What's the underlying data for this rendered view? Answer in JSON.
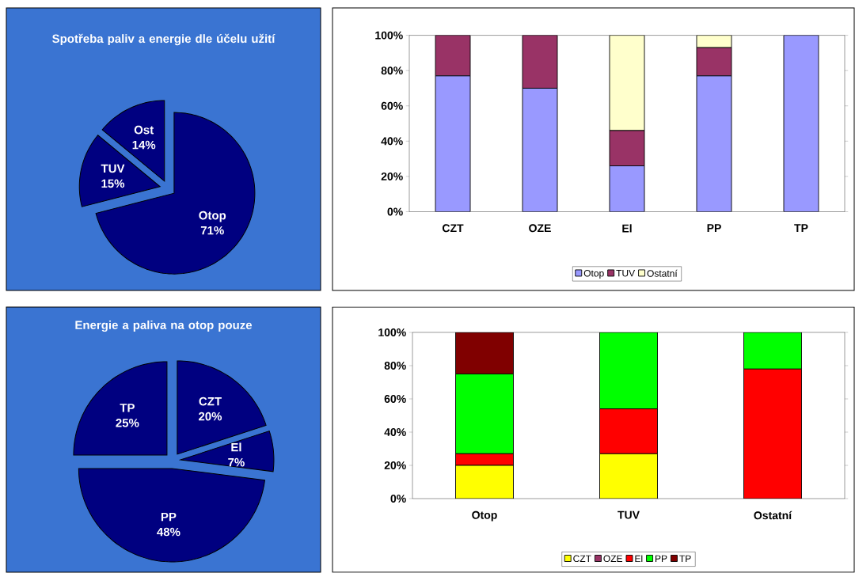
{
  "chart_data": [
    {
      "type": "pie",
      "title": "Spotřeba paliv a energie dle účelu užití",
      "categories": [
        "Otop",
        "TUV",
        "Ost"
      ],
      "values": [
        71,
        15,
        14
      ],
      "value_labels": [
        "71%",
        "15%",
        "14%"
      ],
      "colors": [
        "#000080",
        "#000080",
        "#000080"
      ]
    },
    {
      "type": "bar",
      "stacked": true,
      "categories": [
        "CZT",
        "OZE",
        "El",
        "PP",
        "TP"
      ],
      "series": [
        {
          "name": "Otop",
          "color": "#9999ff",
          "values": [
            77,
            70,
            26,
            77,
            100
          ]
        },
        {
          "name": "TUV",
          "color": "#993366",
          "values": [
            23,
            30,
            20,
            16,
            0
          ]
        },
        {
          "name": "Ostatní",
          "color": "#ffffcc",
          "values": [
            0,
            0,
            54,
            7,
            0
          ]
        }
      ],
      "ylim": [
        0,
        100
      ],
      "yticks": [
        {
          "value": 0,
          "label": "0%"
        },
        {
          "value": 20,
          "label": "20%"
        },
        {
          "value": 40,
          "label": "40%"
        },
        {
          "value": 60,
          "label": "60%"
        },
        {
          "value": 80,
          "label": "80%"
        },
        {
          "value": 100,
          "label": "100%"
        }
      ],
      "legend": "bottom"
    },
    {
      "type": "pie",
      "title": "Energie a paliva na otop pouze",
      "categories": [
        "CZT",
        "El",
        "PP",
        "TP"
      ],
      "values": [
        20,
        7,
        48,
        25
      ],
      "value_labels": [
        "20%",
        "7%",
        "48%",
        "25%"
      ],
      "colors": [
        "#000080",
        "#000080",
        "#000080",
        "#000080"
      ]
    },
    {
      "type": "bar",
      "stacked": true,
      "categories": [
        "Otop",
        "TUV",
        "Ostatní"
      ],
      "series": [
        {
          "name": "CZT",
          "color": "#ffff00",
          "values": [
            20,
            27,
            0
          ]
        },
        {
          "name": "OZE",
          "color": "#993366",
          "values": [
            0,
            0,
            0
          ]
        },
        {
          "name": "El",
          "color": "#ff0000",
          "values": [
            7,
            27,
            78
          ]
        },
        {
          "name": "PP",
          "color": "#00ff00",
          "values": [
            48,
            46,
            22
          ]
        },
        {
          "name": "TP",
          "color": "#800000",
          "values": [
            25,
            0,
            0
          ]
        }
      ],
      "ylim": [
        0,
        100
      ],
      "yticks": [
        {
          "value": 0,
          "label": "0%"
        },
        {
          "value": 20,
          "label": "20%"
        },
        {
          "value": 40,
          "label": "40%"
        },
        {
          "value": 60,
          "label": "60%"
        },
        {
          "value": 80,
          "label": "80%"
        },
        {
          "value": 100,
          "label": "100%"
        }
      ],
      "legend": "bottom"
    }
  ]
}
